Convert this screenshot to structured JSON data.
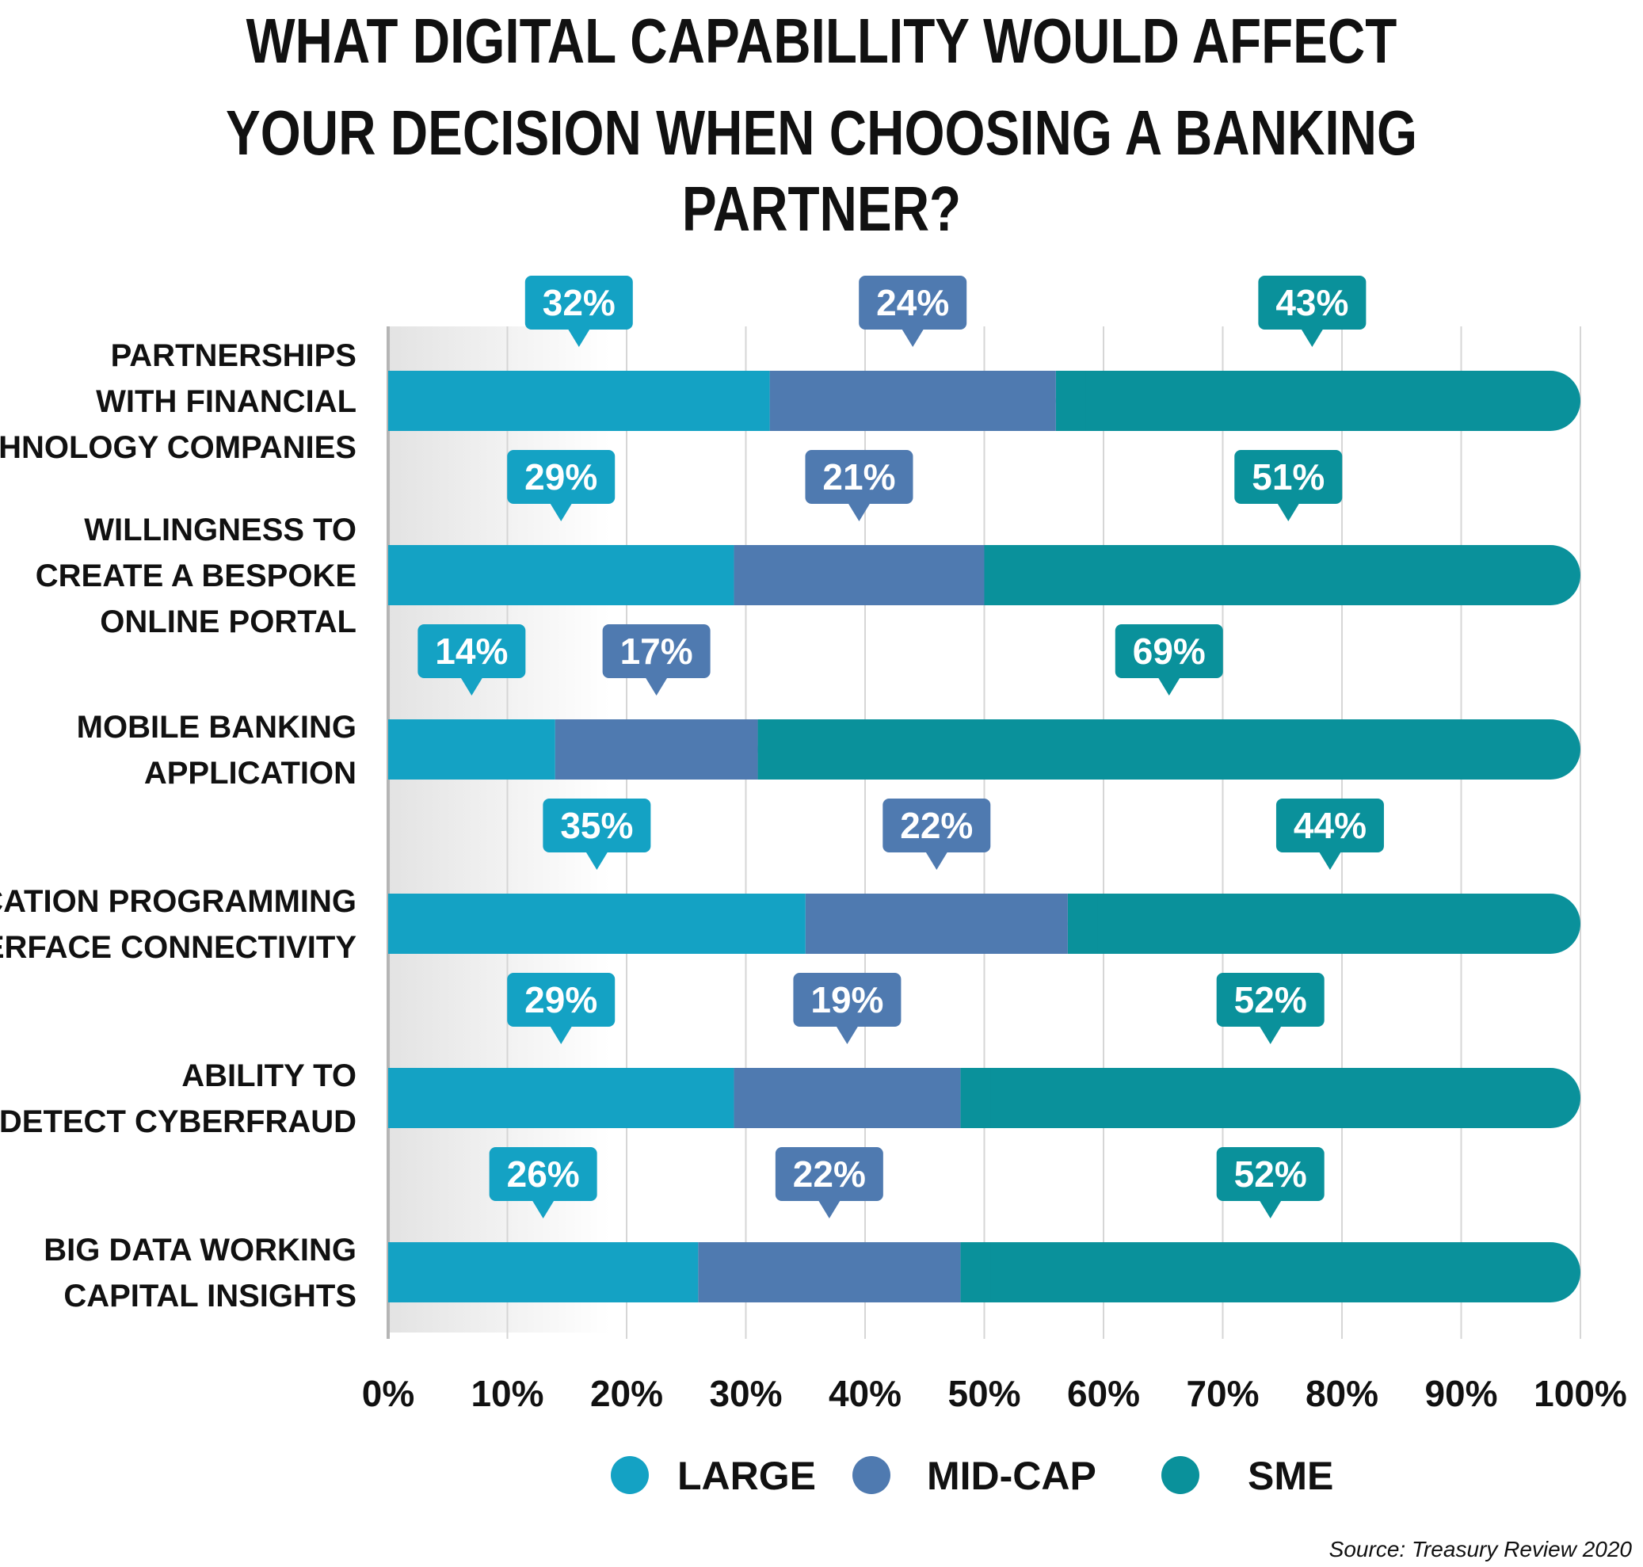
{
  "title_line_1": "WHAT DIGITAL CAPABILLITY WOULD AFFECT",
  "title_line_2": "YOUR DECISION WHEN CHOOSING A BANKING PARTNER?",
  "source": "Source: Treasury Review 2020",
  "chart_data": {
    "type": "bar",
    "orientation": "horizontal",
    "stacked": true,
    "categories": [
      [
        "PARTNERSHIPS",
        "WITH FINANCIAL",
        "TECHNOLOGY COMPANIES"
      ],
      [
        "WILLINGNESS TO",
        "CREATE A BESPOKE",
        "ONLINE PORTAL"
      ],
      [
        "MOBILE BANKING",
        "APPLICATION"
      ],
      [
        "APPLICATION PROGRAMMING",
        "INTERFACE CONNECTIVITY"
      ],
      [
        "ABILITY TO",
        "DETECT CYBERFRAUD"
      ],
      [
        "BIG DATA WORKING",
        "CAPITAL INSIGHTS"
      ]
    ],
    "series": [
      {
        "name": "LARGE",
        "color": "#14a2c4",
        "values": [
          32,
          29,
          14,
          35,
          29,
          26
        ]
      },
      {
        "name": "MID-CAP",
        "color": "#4f7ab0",
        "values": [
          24,
          21,
          17,
          22,
          19,
          22
        ]
      },
      {
        "name": "SME",
        "color": "#0a919b",
        "values": [
          43,
          51,
          69,
          44,
          52,
          52
        ]
      }
    ],
    "value_labels": [
      [
        "32%",
        "24%",
        "43%"
      ],
      [
        "29%",
        "21%",
        "51%"
      ],
      [
        "14%",
        "17%",
        "69%"
      ],
      [
        "35%",
        "22%",
        "44%"
      ],
      [
        "29%",
        "19%",
        "52%"
      ],
      [
        "26%",
        "22%",
        "52%"
      ]
    ],
    "xlim": [
      0,
      100
    ],
    "x_ticks": [
      "0%",
      "10%",
      "20%",
      "30%",
      "40%",
      "50%",
      "60%",
      "70%",
      "80%",
      "90%",
      "100%"
    ],
    "grid": true,
    "legend_position": "bottom"
  }
}
